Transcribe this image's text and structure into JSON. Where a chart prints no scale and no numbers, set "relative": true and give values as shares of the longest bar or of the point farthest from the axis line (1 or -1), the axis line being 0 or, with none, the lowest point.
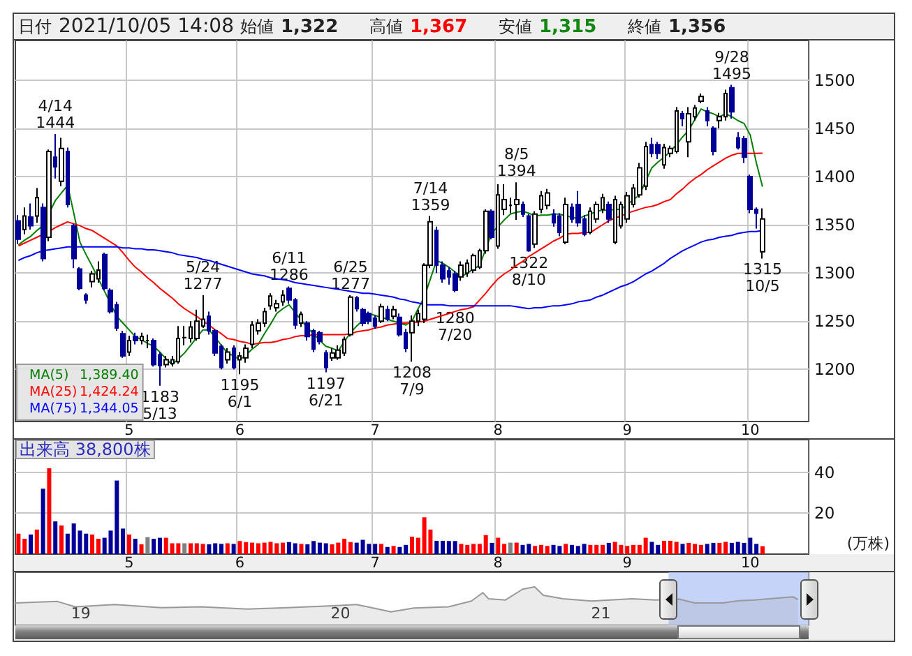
{
  "chart_data": [
    {
      "type": "candlestick",
      "categories": [
        null,
        null,
        null,
        null,
        null,
        null,
        null,
        null,
        null,
        null,
        null,
        null,
        null,
        null,
        null,
        null,
        null,
        null,
        "5",
        null,
        null,
        null,
        null,
        null,
        null,
        null,
        null,
        null,
        null,
        null,
        null,
        null,
        null,
        null,
        null,
        null,
        "6",
        null,
        null,
        null,
        null,
        null,
        null,
        null,
        null,
        null,
        null,
        null,
        null,
        null,
        null,
        null,
        null,
        null,
        null,
        null,
        null,
        null,
        "7",
        null,
        null,
        null,
        null,
        null,
        null,
        null,
        null,
        null,
        null,
        null,
        null,
        null,
        null,
        null,
        null,
        null,
        null,
        null,
        "8",
        null,
        null,
        null,
        null,
        null,
        null,
        null,
        null,
        null,
        null,
        null,
        null,
        null,
        null,
        null,
        null,
        null,
        null,
        null,
        null,
        "9",
        null,
        null,
        null,
        null,
        null,
        null,
        null,
        null,
        null,
        null,
        null,
        null,
        null,
        null,
        null,
        null,
        null,
        null,
        null,
        "10",
        null,
        null,
        null,
        null,
        null,
        null,
        null,
        null,
        null
      ],
      "ohlc": [
        [
          1354,
          1360,
          1330,
          1335
        ],
        [
          1345,
          1368,
          1340,
          1359
        ],
        [
          1358,
          1372,
          1345,
          1349
        ],
        [
          1359,
          1388,
          1352,
          1378
        ],
        [
          1368,
          1372,
          1312,
          1315
        ],
        [
          1337,
          1428,
          1333,
          1426
        ],
        [
          1420,
          1444,
          1398,
          1410
        ],
        [
          1395,
          1440,
          1390,
          1429
        ],
        [
          1426,
          1430,
          1368,
          1371
        ],
        [
          1349,
          1351,
          1305,
          1315
        ],
        [
          1304,
          1306,
          1282,
          1284
        ],
        [
          1277,
          1279,
          1268,
          1272
        ],
        [
          1291,
          1302,
          1285,
          1299
        ],
        [
          1294,
          1312,
          1290,
          1303
        ],
        [
          1319,
          1321,
          1282,
          1284
        ],
        [
          1282,
          1284,
          1258,
          1260
        ],
        [
          1267,
          1270,
          1240,
          1243
        ],
        [
          1237,
          1240,
          1212,
          1214
        ],
        [
          1218,
          1235,
          1214,
          1230
        ],
        [
          1234,
          1238,
          1226,
          1230
        ],
        [
          1230,
          1238,
          1226,
          1234
        ],
        [
          1230,
          1236,
          1222,
          1230
        ],
        [
          1230,
          1232,
          1203,
          1205
        ],
        [
          1215,
          1218,
          1183,
          1204
        ],
        [
          1205,
          1214,
          1202,
          1210
        ],
        [
          1206,
          1214,
          1203,
          1210
        ],
        [
          1208,
          1245,
          1206,
          1232
        ],
        [
          1233,
          1245,
          1225,
          1233
        ],
        [
          1232,
          1250,
          1228,
          1244
        ],
        [
          1232,
          1262,
          1230,
          1250
        ],
        [
          1245,
          1277,
          1243,
          1252
        ],
        [
          1255,
          1260,
          1236,
          1240
        ],
        [
          1240,
          1242,
          1214,
          1217
        ],
        [
          1224,
          1226,
          1200,
          1202
        ],
        [
          1210,
          1222,
          1206,
          1218
        ],
        [
          1222,
          1225,
          1200,
          1202
        ],
        [
          1210,
          1218,
          1195,
          1214
        ],
        [
          1212,
          1226,
          1207,
          1222
        ],
        [
          1226,
          1250,
          1222,
          1246
        ],
        [
          1240,
          1252,
          1236,
          1248
        ],
        [
          1248,
          1264,
          1244,
          1260
        ],
        [
          1266,
          1279,
          1262,
          1276
        ],
        [
          1264,
          1272,
          1260,
          1268
        ],
        [
          1270,
          1282,
          1266,
          1277
        ],
        [
          1284,
          1286,
          1268,
          1272
        ],
        [
          1272,
          1274,
          1242,
          1246
        ],
        [
          1248,
          1260,
          1244,
          1257
        ],
        [
          1248,
          1250,
          1230,
          1234
        ],
        [
          1240,
          1242,
          1218,
          1221
        ],
        [
          1238,
          1240,
          1226,
          1229
        ],
        [
          1217,
          1220,
          1197,
          1202
        ],
        [
          1212,
          1222,
          1209,
          1217
        ],
        [
          1212,
          1225,
          1210,
          1220
        ],
        [
          1217,
          1234,
          1214,
          1231
        ],
        [
          1236,
          1277,
          1234,
          1275
        ],
        [
          1274,
          1276,
          1260,
          1263
        ],
        [
          1262,
          1264,
          1245,
          1248
        ],
        [
          1258,
          1260,
          1247,
          1250
        ],
        [
          1253,
          1256,
          1242,
          1245
        ],
        [
          1250,
          1268,
          1248,
          1265
        ],
        [
          1262,
          1266,
          1250,
          1252
        ],
        [
          1255,
          1266,
          1252,
          1262
        ],
        [
          1254,
          1258,
          1234,
          1236
        ],
        [
          1238,
          1242,
          1218,
          1222
        ],
        [
          1238,
          1256,
          1208,
          1250
        ],
        [
          1250,
          1262,
          1245,
          1258
        ],
        [
          1252,
          1310,
          1248,
          1308
        ],
        [
          1308,
          1359,
          1305,
          1353
        ],
        [
          1344,
          1348,
          1300,
          1308
        ],
        [
          1308,
          1312,
          1290,
          1294
        ],
        [
          1302,
          1306,
          1288,
          1296
        ],
        [
          1299,
          1302,
          1280,
          1282
        ],
        [
          1296,
          1312,
          1292,
          1308
        ],
        [
          1300,
          1314,
          1296,
          1310
        ],
        [
          1303,
          1320,
          1300,
          1318
        ],
        [
          1306,
          1325,
          1304,
          1323
        ],
        [
          1323,
          1366,
          1320,
          1364
        ],
        [
          1364,
          1366,
          1335,
          1337
        ],
        [
          1328,
          1392,
          1325,
          1381
        ],
        [
          1366,
          1392,
          1360,
          1376
        ],
        [
          1370,
          1378,
          1362,
          1370
        ],
        [
          1371,
          1394,
          1355,
          1376
        ],
        [
          1371,
          1374,
          1358,
          1361
        ],
        [
          1359,
          1361,
          1322,
          1323
        ],
        [
          1330,
          1364,
          1326,
          1361
        ],
        [
          1366,
          1385,
          1362,
          1380
        ],
        [
          1370,
          1387,
          1366,
          1383
        ],
        [
          1361,
          1366,
          1348,
          1352
        ],
        [
          1359,
          1362,
          1338,
          1342
        ],
        [
          1332,
          1378,
          1330,
          1371
        ],
        [
          1368,
          1372,
          1352,
          1356
        ],
        [
          1371,
          1385,
          1348,
          1352
        ],
        [
          1356,
          1360,
          1338,
          1340
        ],
        [
          1342,
          1368,
          1340,
          1364
        ],
        [
          1356,
          1374,
          1352,
          1371
        ],
        [
          1366,
          1382,
          1362,
          1378
        ],
        [
          1371,
          1374,
          1352,
          1356
        ],
        [
          1332,
          1380,
          1330,
          1376
        ],
        [
          1349,
          1374,
          1346,
          1371
        ],
        [
          1356,
          1384,
          1352,
          1380
        ],
        [
          1371,
          1392,
          1368,
          1388
        ],
        [
          1381,
          1414,
          1378,
          1409
        ],
        [
          1390,
          1436,
          1386,
          1431
        ],
        [
          1433,
          1440,
          1420,
          1424
        ],
        [
          1433,
          1436,
          1418,
          1424
        ],
        [
          1412,
          1434,
          1408,
          1430
        ],
        [
          1424,
          1432,
          1420,
          1429
        ],
        [
          1426,
          1472,
          1424,
          1468
        ],
        [
          1465,
          1468,
          1452,
          1460
        ],
        [
          1436,
          1472,
          1420,
          1465
        ],
        [
          1462,
          1474,
          1458,
          1471
        ],
        [
          1478,
          1486,
          1476,
          1483
        ],
        [
          1468,
          1472,
          1452,
          1458
        ],
        [
          1450,
          1452,
          1422,
          1426
        ],
        [
          1458,
          1466,
          1450,
          1462
        ],
        [
          1462,
          1490,
          1458,
          1486
        ],
        [
          1492,
          1495,
          1460,
          1467
        ],
        [
          1440,
          1446,
          1428,
          1430
        ],
        [
          1439,
          1442,
          1414,
          1420
        ],
        [
          1400,
          1402,
          1362,
          1366
        ],
        [
          1366,
          1368,
          1346,
          1362
        ],
        [
          1322,
          1367,
          1315,
          1356
        ],
        null,
        null,
        null,
        null,
        null,
        null,
        null
      ],
      "colors": [
        "#000099",
        "#ffffff",
        "#000099",
        "#ffffff",
        "#000099",
        "#ffffff",
        "#000099",
        "#ffffff",
        "#000099",
        "#000099",
        "#000099",
        "#000099",
        "#ffffff",
        "#ffffff",
        "#000099",
        "#000099",
        "#000099",
        "#000099",
        "#ffffff",
        "#000099",
        "#ffffff",
        "#000000",
        "#000099",
        "#000099",
        "#ffffff",
        "#ffffff",
        "#ffffff",
        "#000000",
        "#ffffff",
        "#ffffff",
        "#ffffff",
        "#000099",
        "#000099",
        "#000099",
        "#ffffff",
        "#000099",
        "#ffffff",
        "#ffffff",
        "#ffffff",
        "#ffffff",
        "#ffffff",
        "#ffffff",
        "#ffffff",
        "#ffffff",
        "#000099",
        "#000099",
        "#ffffff",
        "#000099",
        "#000099",
        "#000099",
        "#000099",
        "#ffffff",
        "#ffffff",
        "#ffffff",
        "#ffffff",
        "#000099",
        "#000099",
        "#000099",
        "#000099",
        "#ffffff",
        "#000099",
        "#ffffff",
        "#000099",
        "#000099",
        "#ffffff",
        "#ffffff",
        "#ffffff",
        "#ffffff",
        "#000099",
        "#000099",
        "#000099",
        "#000099",
        "#ffffff",
        "#ffffff",
        "#ffffff",
        "#ffffff",
        "#ffffff",
        "#000099",
        "#ffffff",
        "#ffffff",
        "#000000",
        "#ffffff",
        "#000099",
        "#000099",
        "#ffffff",
        "#ffffff",
        "#ffffff",
        "#000099",
        "#000099",
        "#ffffff",
        "#000099",
        "#000099",
        "#000099",
        "#ffffff",
        "#ffffff",
        "#ffffff",
        "#000099",
        "#ffffff",
        "#ffffff",
        "#ffffff",
        "#ffffff",
        "#ffffff",
        "#ffffff",
        "#000099",
        "#000099",
        "#ffffff",
        "#ffffff",
        "#ffffff",
        "#000099",
        "#ffffff",
        "#ffffff",
        "#ffffff",
        "#000099",
        "#000099",
        "#ffffff",
        "#ffffff",
        "#000099",
        "#000099",
        "#000099",
        "#000099",
        "#000099",
        "#ffffff",
        null,
        null,
        null,
        null,
        null,
        null,
        null
      ],
      "series": [
        {
          "name": "MA(5) 1,389.40",
          "type": "line",
          "color": "#008000",
          "values": [
            1329,
            1334,
            1338,
            1344,
            1349,
            1362,
            1375,
            1383,
            1391,
            1362,
            1332,
            1319,
            1307,
            1294,
            1281,
            1268,
            1255,
            1248,
            1241,
            1234,
            1231,
            1227,
            1224,
            1218,
            1211,
            1205,
            1211,
            1217,
            1225,
            1233,
            1241,
            1241,
            1233,
            1225,
            1217,
            1214,
            1210,
            1215,
            1221,
            1226,
            1237,
            1247,
            1258,
            1263,
            1267,
            1259,
            1251,
            1243,
            1237,
            1230,
            1224,
            1222,
            1219,
            1229,
            1238,
            1245,
            1251,
            1258,
            1256,
            1254,
            1252,
            1250,
            1248,
            1246,
            1250,
            1263,
            1275,
            1294,
            1313,
            1310,
            1306,
            1301,
            1296,
            1300,
            1304,
            1308,
            1325,
            1342,
            1348,
            1355,
            1361,
            1363,
            1364,
            1362,
            1359,
            1360,
            1360,
            1361,
            1361,
            1359,
            1358,
            1356,
            1359,
            1361,
            1364,
            1365,
            1365,
            1366,
            1366,
            1371,
            1376,
            1381,
            1395,
            1409,
            1415,
            1420,
            1426,
            1433,
            1441,
            1448,
            1459,
            1470,
            1467,
            1465,
            1462,
            1465,
            1462,
            1458,
            1455,
            1443,
            1414,
            1389.4,
            null,
            null,
            null,
            null,
            null,
            null,
            null
          ]
        },
        {
          "name": "MA(25) 1,424.24",
          "type": "line",
          "color": "#ff0000",
          "values": [
            1328,
            1331,
            1334,
            1337,
            1340,
            1343,
            1347,
            1350,
            1353,
            1351,
            1349,
            1346,
            1344,
            1340,
            1336,
            1332,
            1328,
            1321,
            1313,
            1306,
            1301,
            1295,
            1290,
            1284,
            1279,
            1274,
            1268,
            1263,
            1259,
            1255,
            1250,
            1246,
            1241,
            1237,
            1232,
            1231,
            1229,
            1228,
            1226,
            1227,
            1228,
            1228,
            1229,
            1231,
            1232,
            1234,
            1235,
            1235,
            1236,
            1236,
            1236,
            1236,
            1236,
            1236,
            1237,
            1239,
            1240,
            1241,
            1243,
            1244,
            1246,
            1247,
            1248,
            1248,
            1249,
            1249,
            1250,
            1252,
            1254,
            1256,
            1258,
            1260,
            1262,
            1263,
            1265,
            1272,
            1279,
            1287,
            1294,
            1299,
            1303,
            1308,
            1312,
            1317,
            1321,
            1325,
            1329,
            1333,
            1336,
            1340,
            1341,
            1341,
            1342,
            1342,
            1346,
            1350,
            1354,
            1357,
            1359,
            1362,
            1364,
            1366,
            1368,
            1369,
            1371,
            1374,
            1376,
            1382,
            1387,
            1393,
            1398,
            1402,
            1407,
            1411,
            1415,
            1419,
            1422,
            1424,
            1424,
            1424,
            1424,
            1424.24,
            null,
            null,
            null,
            null,
            null,
            null,
            null
          ]
        },
        {
          "name": "MA(75) 1,344.05",
          "type": "line",
          "color": "#0000ff",
          "values": [
            1313,
            1316,
            1318,
            1321,
            1323,
            1324,
            1325,
            1326,
            1327,
            1327,
            1327,
            1327,
            1327,
            1327,
            1327,
            1327,
            1327,
            1326,
            1326,
            1325,
            1325,
            1324,
            1324,
            1323,
            1322,
            1321,
            1319,
            1318,
            1317,
            1316,
            1314,
            1313,
            1311,
            1309,
            1307,
            1305,
            1303,
            1301,
            1299,
            1298,
            1297,
            1295,
            1294,
            1293,
            1292,
            1290,
            1289,
            1288,
            1287,
            1286,
            1285,
            1284,
            1283,
            1282,
            1281,
            1280,
            1279,
            1279,
            1278,
            1277,
            1276,
            1275,
            1273,
            1272,
            1270,
            1269,
            1267,
            1267,
            1267,
            1267,
            1266,
            1266,
            1266,
            1266,
            1266,
            1266,
            1266,
            1266,
            1266,
            1266,
            1266,
            1265,
            1264,
            1263,
            1264,
            1264,
            1265,
            1266,
            1266,
            1267,
            1268,
            1270,
            1271,
            1272,
            1275,
            1277,
            1280,
            1283,
            1286,
            1288,
            1291,
            1295,
            1299,
            1302,
            1306,
            1310,
            1315,
            1319,
            1323,
            1326,
            1329,
            1332,
            1334,
            1335,
            1337,
            1338,
            1339,
            1341,
            1342,
            1343,
            1343,
            1344.05,
            null,
            null,
            null,
            null,
            null,
            null,
            null
          ]
        }
      ],
      "ylim": [
        1146,
        1541
      ],
      "yticks": [
        1200,
        1250,
        1300,
        1350,
        1400,
        1450,
        1500
      ],
      "grid": true,
      "legend": "bottom left",
      "marker": "none",
      "annotations": [
        "日付 2021/10/05 14:08",
        "始値 1,322",
        "高値 1,367",
        "安値 1,315",
        "終値 1,356",
        {
          "text": "4/14\n1444",
          "y": 1444
        },
        {
          "text": "1183\n5/13",
          "y": 1183
        },
        {
          "text": "5/24\n1277",
          "y": 1277
        },
        {
          "text": "1195\n6/1",
          "y": 1195
        },
        {
          "text": "6/11\n1286",
          "y": 1286
        },
        {
          "text": "1197\n6/21",
          "y": 1197
        },
        {
          "text": "6/25\n1277",
          "y": 1277
        },
        {
          "text": "1208\n7/9",
          "y": 1208
        },
        {
          "text": "7/14\n1359",
          "y": 1359
        },
        {
          "text": "1280\n7/20",
          "y": 1280
        },
        {
          "text": "8/5\n1394",
          "y": 1394
        },
        {
          "text": "1322\n8/10",
          "y": 1322
        },
        {
          "text": "9/28\n1495",
          "y": 1495
        },
        {
          "text": "1315\n10/5",
          "y": 1315
        }
      ]
    },
    {
      "type": "bar",
      "title": "出来高 38,800株",
      "ylabel": "(万株)",
      "categories": [
        null,
        null,
        null,
        null,
        null,
        null,
        null,
        null,
        null,
        null,
        null,
        null,
        null,
        null,
        null,
        null,
        null,
        null,
        "5",
        null,
        null,
        null,
        null,
        null,
        null,
        null,
        null,
        null,
        null,
        null,
        null,
        null,
        null,
        null,
        null,
        null,
        "6",
        null,
        null,
        null,
        null,
        null,
        null,
        null,
        null,
        null,
        null,
        null,
        null,
        null,
        null,
        null,
        null,
        null,
        null,
        null,
        null,
        null,
        "7",
        null,
        null,
        null,
        null,
        null,
        null,
        null,
        null,
        null,
        null,
        null,
        null,
        null,
        null,
        null,
        null,
        null,
        null,
        null,
        "8",
        null,
        null,
        null,
        null,
        null,
        null,
        null,
        null,
        null,
        null,
        null,
        null,
        null,
        null,
        null,
        null,
        null,
        null,
        null,
        null,
        "9",
        null,
        null,
        null,
        null,
        null,
        null,
        null,
        null,
        null,
        null,
        null,
        null,
        null,
        null,
        null,
        null,
        null,
        null,
        null,
        "10",
        null,
        null,
        null,
        null,
        null,
        null,
        null,
        null,
        null
      ],
      "values": [
        10,
        7.5,
        9.6,
        12,
        32,
        42,
        16,
        14,
        10,
        15,
        11.5,
        10,
        9.6,
        7.5,
        8,
        11.5,
        36,
        12.5,
        9.6,
        7.5,
        4.8,
        8.3,
        7.5,
        8,
        8,
        5.3,
        5.3,
        5.3,
        5.3,
        5.3,
        5,
        4.8,
        5.3,
        5,
        5.3,
        5,
        6.4,
        5.9,
        5.6,
        5.3,
        5.6,
        6,
        5.3,
        5.6,
        5.9,
        5.3,
        5,
        4.8,
        6.4,
        5.6,
        5.3,
        4.8,
        5.6,
        7.5,
        5.9,
        5.6,
        7,
        5,
        5,
        5,
        3.5,
        4,
        3.5,
        4.5,
        8.5,
        8,
        18,
        12,
        6.5,
        6.5,
        6.4,
        6.4,
        5,
        4.5,
        5,
        5,
        9.3,
        5.5,
        8,
        5,
        5.6,
        5.6,
        4.5,
        5,
        4,
        4.5,
        4,
        4.5,
        4,
        5,
        4.5,
        4,
        5,
        4.5,
        4.5,
        4.5,
        5.5,
        6,
        4.5,
        4,
        4.5,
        4.5,
        8,
        6,
        4.5,
        6.5,
        6.5,
        6,
        5,
        5.5,
        5,
        4.5,
        5,
        5.5,
        5.5,
        6,
        5.5,
        6,
        5.5,
        8,
        5,
        3.88,
        null,
        null,
        null,
        null,
        null,
        null,
        null
      ],
      "colors": [
        "#ff0000",
        "#ff0000",
        "#000099",
        "#ff0000",
        "#000099",
        "#ff0000",
        "#000099",
        "#ff0000",
        "#000099",
        "#000099",
        "#000099",
        "#000099",
        "#ff0000",
        "#ff0000",
        "#000099",
        "#000099",
        "#000099",
        "#000099",
        "#ff0000",
        "#000099",
        "#ff0000",
        "#808080",
        "#000099",
        "#000099",
        "#ff0000",
        "#ff0000",
        "#ff0000",
        "#808080",
        "#ff0000",
        "#ff0000",
        "#ff0000",
        "#000099",
        "#000099",
        "#000099",
        "#ff0000",
        "#000099",
        "#ff0000",
        "#ff0000",
        "#ff0000",
        "#ff0000",
        "#ff0000",
        "#ff0000",
        "#ff0000",
        "#ff0000",
        "#000099",
        "#000099",
        "#ff0000",
        "#000099",
        "#000099",
        "#000099",
        "#000099",
        "#ff0000",
        "#ff0000",
        "#ff0000",
        "#ff0000",
        "#000099",
        "#000099",
        "#000099",
        "#000099",
        "#ff0000",
        "#000099",
        "#ff0000",
        "#000099",
        "#000099",
        "#ff0000",
        "#ff0000",
        "#ff0000",
        "#ff0000",
        "#000099",
        "#000099",
        "#000099",
        "#000099",
        "#ff0000",
        "#ff0000",
        "#ff0000",
        "#ff0000",
        "#ff0000",
        "#000099",
        "#ff0000",
        "#ff0000",
        "#808080",
        "#ff0000",
        "#000099",
        "#000099",
        "#ff0000",
        "#ff0000",
        "#ff0000",
        "#000099",
        "#000099",
        "#ff0000",
        "#000099",
        "#000099",
        "#000099",
        "#ff0000",
        "#ff0000",
        "#ff0000",
        "#000099",
        "#ff0000",
        "#ff0000",
        "#ff0000",
        "#ff0000",
        "#ff0000",
        "#ff0000",
        "#000099",
        "#000099",
        "#ff0000",
        "#ff0000",
        "#ff0000",
        "#000099",
        "#ff0000",
        "#ff0000",
        "#ff0000",
        "#000099",
        "#000099",
        "#ff0000",
        "#ff0000",
        "#000099",
        "#000099",
        "#000099",
        "#000099",
        "#000099",
        "#ff0000",
        null,
        null,
        null,
        null,
        null,
        null,
        null
      ],
      "ylim": [
        0,
        56
      ],
      "yticks": [
        20,
        40
      ],
      "grid": true
    },
    {
      "type": "area",
      "relative": true,
      "color": "#999999",
      "marker": "none",
      "x": [
        "2018-10-01",
        "2018-11-29",
        "2018-12-24",
        "2019-02-18",
        "2019-04-24",
        "2019-06-19",
        "2019-08-23",
        "2019-10-18",
        "2019-12-22",
        "2020-01-23",
        "2020-02-08",
        "2020-03-12",
        "2020-04-13",
        "2020-06-01",
        "2020-07-03",
        "2020-07-19",
        "2020-07-27",
        "2020-08-20",
        "2020-09-13",
        "2020-09-30",
        "2020-10-12",
        "2020-11-09",
        "2020-12-19",
        "2021-02-14",
        "2021-03-18",
        "2021-04-21",
        "2021-05-13",
        "2021-06-21",
        "2021-07-14",
        "2021-08-05",
        "2021-09-28",
        "2021-10-05"
      ],
      "values": [
        0.58,
        0.62,
        0.48,
        0.54,
        0.46,
        0.48,
        0.42,
        0.46,
        0.51,
        0.54,
        0.48,
        0.35,
        0.45,
        0.48,
        0.63,
        0.85,
        0.69,
        0.66,
        0.94,
        1,
        0.78,
        0.69,
        0.63,
        0.69,
        0.66,
        0.68,
        0.58,
        0.58,
        0.64,
        0.66,
        0.74,
        0.67
      ],
      "xlim": [
        "2018-10-01",
        "2021-10-20"
      ],
      "xticks": [
        {
          "value": "2019-01-01",
          "label": "19"
        },
        {
          "value": "2020-01-01",
          "label": "20"
        },
        {
          "value": "2021-01-01",
          "label": "21"
        }
      ],
      "bands": [
        {
          "axis": "x",
          "from": "2021-04-06",
          "to": "2021-10-20",
          "color": "#b8c8f8"
        }
      ]
    }
  ]
}
